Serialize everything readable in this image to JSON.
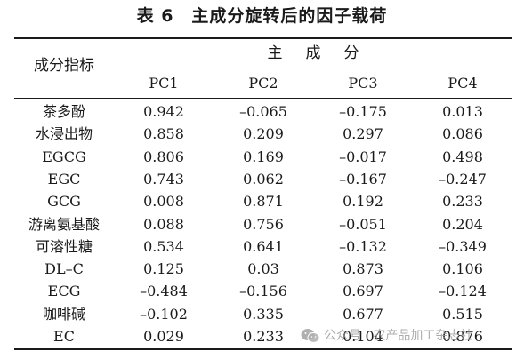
{
  "table": {
    "title": "表 6　主成分旋转后的因子载荷",
    "row_header_label": "成分指标",
    "group_header_label": "主成分",
    "columns": [
      "PC1",
      "PC2",
      "PC3",
      "PC4"
    ],
    "rows": [
      {
        "label": "茶多酚",
        "values": [
          "0.942",
          "–0.065",
          "–0.175",
          "0.013"
        ]
      },
      {
        "label": "水浸出物",
        "values": [
          "0.858",
          "0.209",
          "0.297",
          "0.086"
        ]
      },
      {
        "label": "EGCG",
        "values": [
          "0.806",
          "0.169",
          "–0.017",
          "0.498"
        ]
      },
      {
        "label": "EGC",
        "values": [
          "0.743",
          "0.062",
          "–0.167",
          "–0.247"
        ]
      },
      {
        "label": "GCG",
        "values": [
          "0.008",
          "0.871",
          "0.192",
          "0.233"
        ]
      },
      {
        "label": "游离氨基酸",
        "values": [
          "0.088",
          "0.756",
          "–0.051",
          "0.204"
        ]
      },
      {
        "label": "可溶性糖",
        "values": [
          "0.534",
          "0.641",
          "–0.132",
          "–0.349"
        ]
      },
      {
        "label": "DL–C",
        "values": [
          "0.125",
          "0.03",
          "0.873",
          "0.106"
        ]
      },
      {
        "label": "ECG",
        "values": [
          "–0.484",
          "–0.156",
          "0.697",
          "–0.124"
        ]
      },
      {
        "label": "咖啡碱",
        "values": [
          "–0.102",
          "0.335",
          "0.677",
          "0.515"
        ]
      },
      {
        "label": "EC",
        "values": [
          "0.029",
          "0.233",
          "0.104",
          "0.876"
        ]
      }
    ]
  },
  "watermark": {
    "text": "公众号 · 农产品加工杂志社",
    "icon": "wechat-icon"
  }
}
